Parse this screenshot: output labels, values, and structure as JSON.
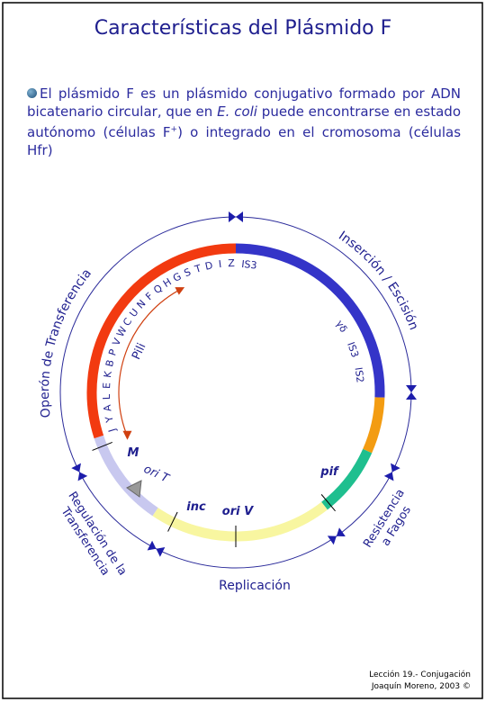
{
  "title": "Características del Plásmido F",
  "intro": {
    "parts": [
      "El plásmido F es un plásmido conjugativo formado por ADN bicatenario circular, que en ",
      "E. coli",
      " puede encontrarse en estado autónomo (células F",
      "+",
      ") o integrado en el cromosoma (células Hfr)"
    ]
  },
  "diagram": {
    "regions": {
      "transfer_operon": "Operón de Transferencia",
      "insertion": "Inserción / Escisión",
      "phage_resistance": [
        "Resistencia",
        "a Fagos"
      ],
      "replication": "Replicación",
      "transfer_regulation": [
        "Regulación de la",
        "Transferencia"
      ]
    },
    "genes": [
      "J",
      "Y",
      "A",
      "L",
      "E",
      "K",
      "B",
      "P",
      "V",
      "W",
      "C",
      "U",
      "N",
      "F",
      "Q",
      "H",
      "G",
      "S",
      "T",
      "D",
      "I",
      "Z"
    ],
    "insertion_sequences": [
      "IS3",
      "γδ",
      "IS3",
      "IS2"
    ],
    "sites": {
      "pili": "Pili",
      "m": "M",
      "oriT": "ori T",
      "inc": "inc",
      "oriV": "ori V",
      "pif": "pif"
    }
  },
  "footer": [
    "Lección 19.- Conjugación",
    "Joaquín Moreno, 2003 ©"
  ]
}
